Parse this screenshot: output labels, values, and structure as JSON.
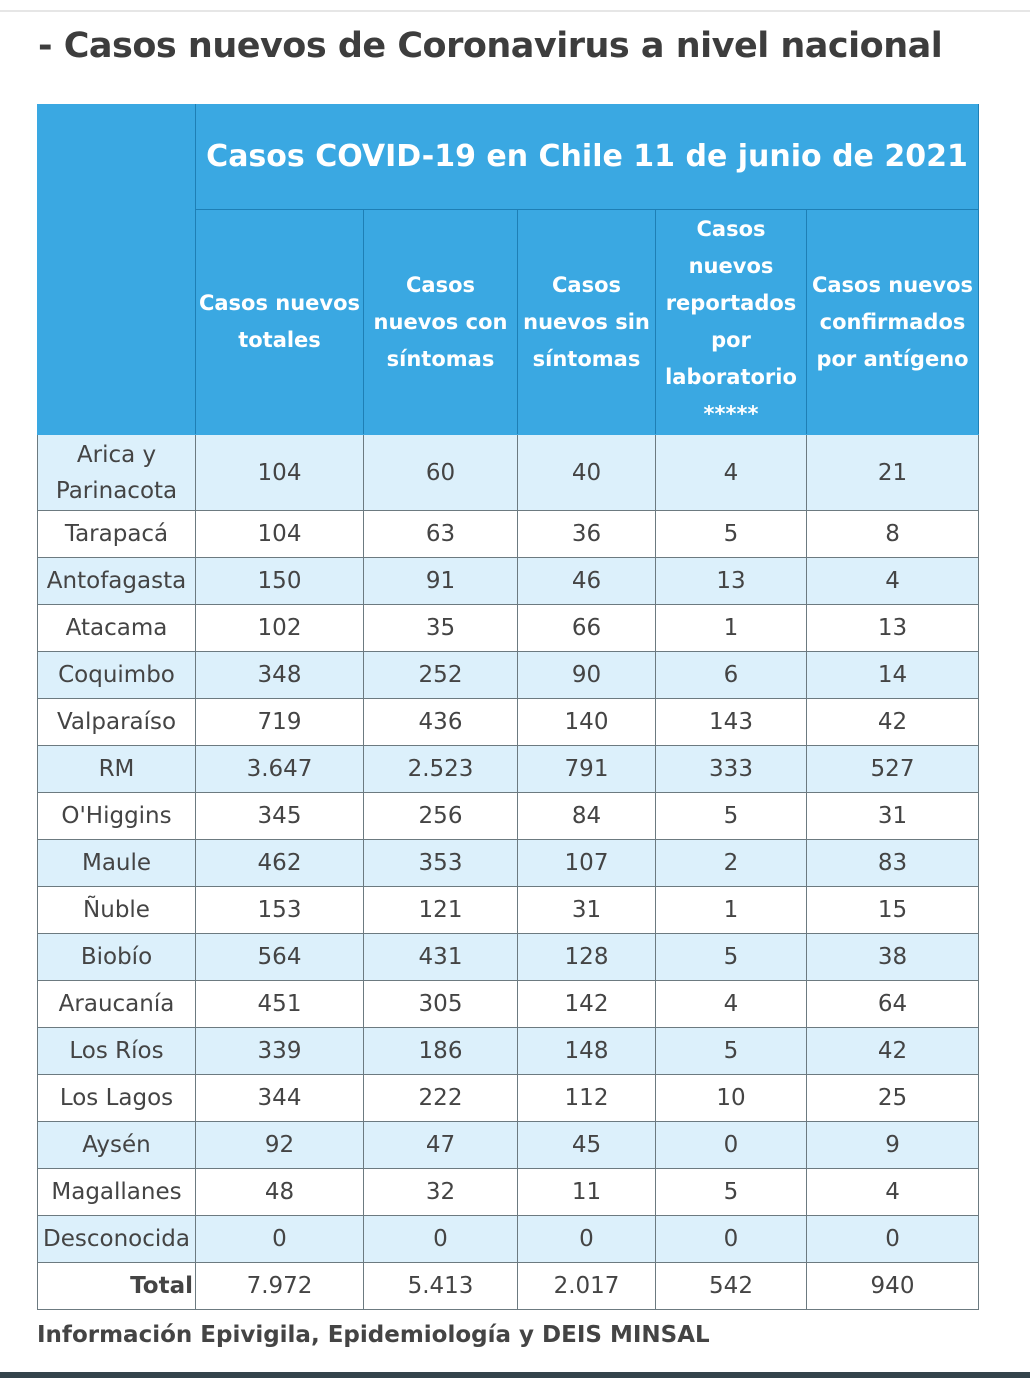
{
  "heading": "- Casos nuevos de Coronavirus a nivel nacional",
  "table": {
    "title": "Casos COVID-19 en Chile 11 de junio de 2021",
    "columns": [
      "Casos nuevos totales",
      "Casos nuevos con síntomas",
      "Casos nuevos sin síntomas",
      "Casos nuevos reportados por laboratorio *****",
      "Casos nuevos confirmados por antígeno"
    ],
    "rows": [
      {
        "region": "Arica y Parinacota",
        "values": [
          "104",
          "60",
          "40",
          "4",
          "21"
        ]
      },
      {
        "region": "Tarapacá",
        "values": [
          "104",
          "63",
          "36",
          "5",
          "8"
        ]
      },
      {
        "region": "Antofagasta",
        "values": [
          "150",
          "91",
          "46",
          "13",
          "4"
        ]
      },
      {
        "region": "Atacama",
        "values": [
          "102",
          "35",
          "66",
          "1",
          "13"
        ]
      },
      {
        "region": "Coquimbo",
        "values": [
          "348",
          "252",
          "90",
          "6",
          "14"
        ]
      },
      {
        "region": "Valparaíso",
        "values": [
          "719",
          "436",
          "140",
          "143",
          "42"
        ]
      },
      {
        "region": "RM",
        "values": [
          "3.647",
          "2.523",
          "791",
          "333",
          "527"
        ]
      },
      {
        "region": "O'Higgins",
        "values": [
          "345",
          "256",
          "84",
          "5",
          "31"
        ]
      },
      {
        "region": "Maule",
        "values": [
          "462",
          "353",
          "107",
          "2",
          "83"
        ]
      },
      {
        "region": "Ñuble",
        "values": [
          "153",
          "121",
          "31",
          "1",
          "15"
        ]
      },
      {
        "region": "Biobío",
        "values": [
          "564",
          "431",
          "128",
          "5",
          "38"
        ]
      },
      {
        "region": "Araucanía",
        "values": [
          "451",
          "305",
          "142",
          "4",
          "64"
        ]
      },
      {
        "region": "Los Ríos",
        "values": [
          "339",
          "186",
          "148",
          "5",
          "42"
        ]
      },
      {
        "region": "Los Lagos",
        "values": [
          "344",
          "222",
          "112",
          "10",
          "25"
        ]
      },
      {
        "region": "Aysén",
        "values": [
          "92",
          "47",
          "45",
          "0",
          "9"
        ]
      },
      {
        "region": "Magallanes",
        "values": [
          "48",
          "32",
          "11",
          "5",
          "4"
        ]
      },
      {
        "region": "Desconocida",
        "values": [
          "0",
          "0",
          "0",
          "0",
          "0"
        ]
      }
    ],
    "total": {
      "label": "Total",
      "values": [
        "7.972",
        "5.413",
        "2.017",
        "542",
        "940"
      ]
    }
  },
  "source": "Información Epivigila, Epidemiología y DEIS MINSAL",
  "colors": {
    "header": "#3aa8e2",
    "alt_row": "#dcf0fb"
  }
}
